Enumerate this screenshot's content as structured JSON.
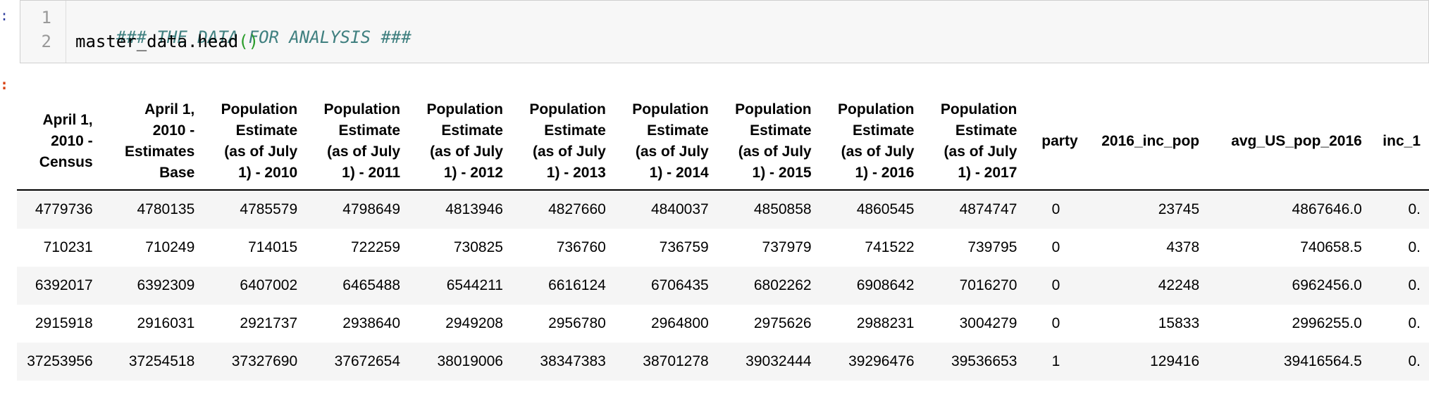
{
  "input": {
    "prompt": ":",
    "lines": [
      {
        "number": "1",
        "comment": "### THE DATA FOR ANALYSIS ###"
      },
      {
        "number": "2",
        "code": "master_data.head",
        "parens": "()"
      }
    ]
  },
  "output": {
    "prompt": ":",
    "columns": [
      [
        "April 1,",
        "2010 -",
        "Census"
      ],
      [
        "April 1,",
        "2010 -",
        "Estimates",
        "Base"
      ],
      [
        "Population",
        "Estimate",
        "(as of July",
        "1) - 2010"
      ],
      [
        "Population",
        "Estimate",
        "(as of July",
        "1) - 2011"
      ],
      [
        "Population",
        "Estimate",
        "(as of July",
        "1) - 2012"
      ],
      [
        "Population",
        "Estimate",
        "(as of July",
        "1) - 2013"
      ],
      [
        "Population",
        "Estimate",
        "(as of July",
        "1) - 2014"
      ],
      [
        "Population",
        "Estimate",
        "(as of July",
        "1) - 2015"
      ],
      [
        "Population",
        "Estimate",
        "(as of July",
        "1) - 2016"
      ],
      [
        "Population",
        "Estimate",
        "(as of July",
        "1) - 2017"
      ],
      [
        "party"
      ],
      [
        "2016_inc_pop"
      ],
      [
        "avg_US_pop_2016"
      ],
      [
        "inc_1"
      ]
    ],
    "rows": [
      [
        "4779736",
        "4780135",
        "4785579",
        "4798649",
        "4813946",
        "4827660",
        "4840037",
        "4850858",
        "4860545",
        "4874747",
        "0",
        "23745",
        "4867646.0",
        "0."
      ],
      [
        "710231",
        "710249",
        "714015",
        "722259",
        "730825",
        "736760",
        "736759",
        "737979",
        "741522",
        "739795",
        "0",
        "4378",
        "740658.5",
        "0."
      ],
      [
        "6392017",
        "6392309",
        "6407002",
        "6465488",
        "6544211",
        "6616124",
        "6706435",
        "6802262",
        "6908642",
        "7016270",
        "0",
        "42248",
        "6962456.0",
        "0."
      ],
      [
        "2915918",
        "2916031",
        "2921737",
        "2938640",
        "2949208",
        "2956780",
        "2964800",
        "2975626",
        "2988231",
        "3004279",
        "0",
        "15833",
        "2996255.0",
        "0."
      ],
      [
        "37253956",
        "37254518",
        "37327690",
        "37672654",
        "38019006",
        "38347383",
        "38701278",
        "39032444",
        "39296476",
        "39536653",
        "1",
        "129416",
        "39416564.5",
        "0."
      ]
    ]
  }
}
